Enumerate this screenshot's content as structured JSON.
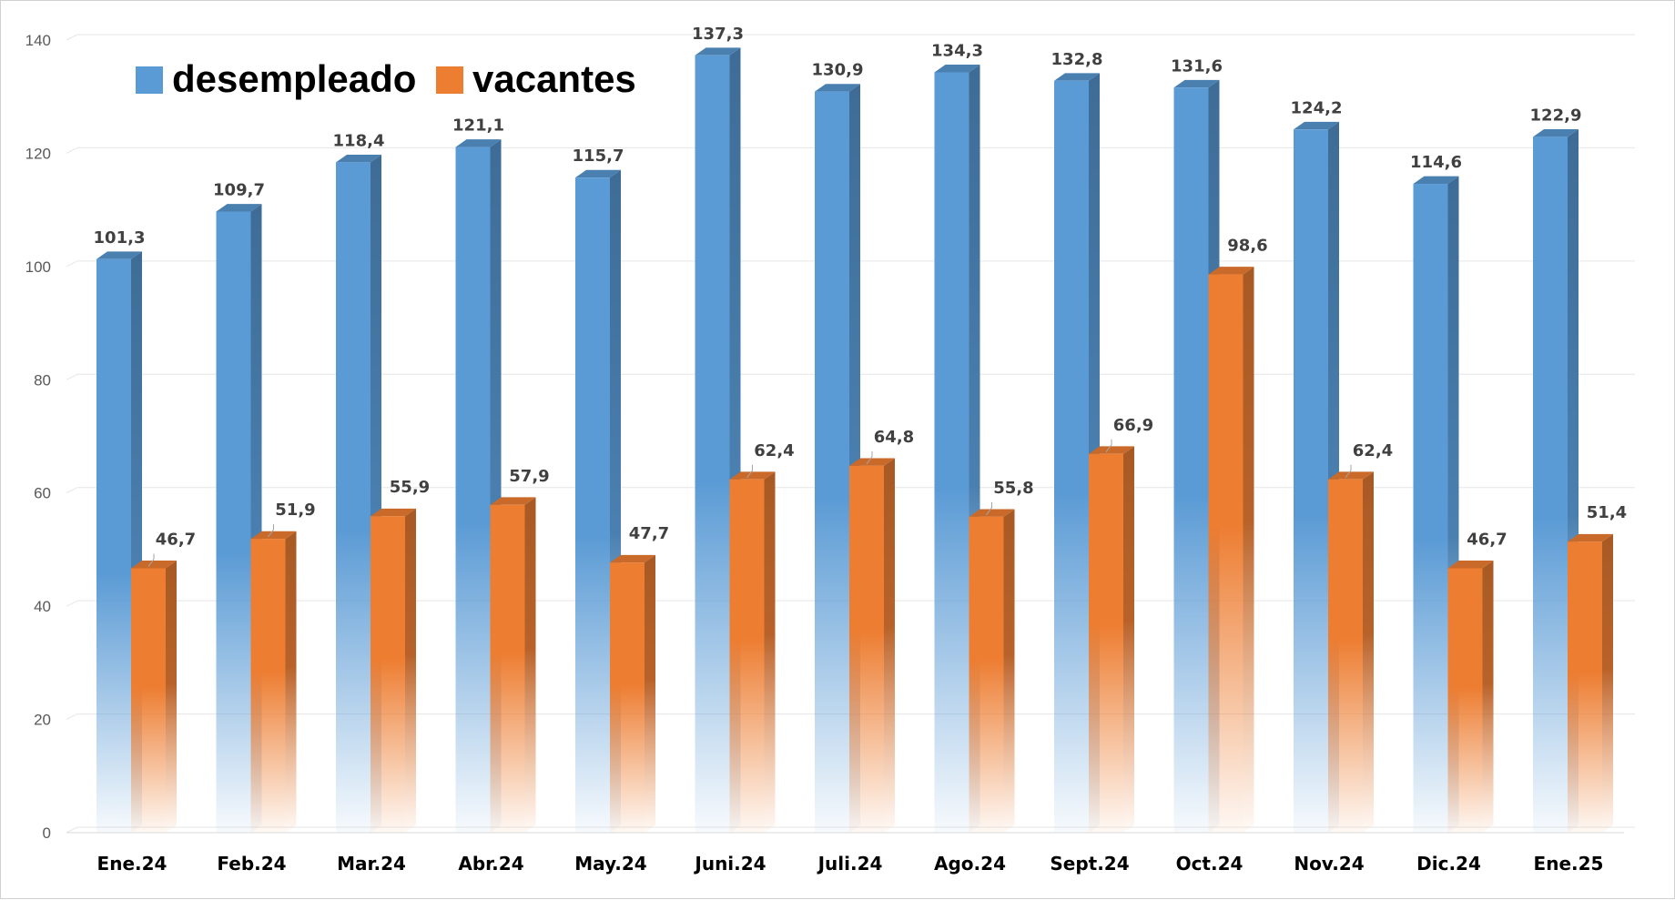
{
  "colors": {
    "desempleado": "#5B9BD5",
    "desempleado_side": "#3E6C96",
    "desempleado_top": "#4A80B0",
    "vacantes": "#ED7D31",
    "vacantes_side": "#A85A24",
    "vacantes_top": "#C96A2A",
    "grid": "#E6E6E6"
  },
  "chart_data": {
    "type": "bar",
    "title": "",
    "xlabel": "",
    "ylabel": "",
    "ylim": [
      0,
      140
    ],
    "yticks": [
      0,
      20,
      40,
      60,
      80,
      100,
      120,
      140
    ],
    "grid": true,
    "legend_position": "top-left",
    "categories": [
      "Ene.24",
      "Feb.24",
      "Mar.24",
      "Abr.24",
      "May.24",
      "Juni.24",
      "Juli.24",
      "Ago.24",
      "Sept.24",
      "Oct.24",
      "Nov.24",
      "Dic.24",
      "Ene.25"
    ],
    "series": [
      {
        "name": "desempleado",
        "values": [
          101.3,
          109.7,
          118.4,
          121.1,
          115.7,
          137.3,
          130.9,
          134.3,
          132.8,
          131.6,
          124.2,
          114.6,
          122.9
        ],
        "labels": [
          "101,3",
          "109,7",
          "118,4",
          "121,1",
          "115,7",
          "137,3",
          "130,9",
          "134,3",
          "132,8",
          "131,6",
          "124,2",
          "114,6",
          "122,9"
        ]
      },
      {
        "name": "vacantes",
        "values": [
          46.7,
          51.9,
          55.9,
          57.9,
          47.7,
          62.4,
          64.8,
          55.8,
          66.9,
          98.6,
          62.4,
          46.7,
          51.4
        ],
        "labels": [
          "46,7",
          "51,9",
          "55,9",
          "57,9",
          "47,7",
          "62,4",
          "64,8",
          "55,8",
          "66,9",
          "98,6",
          "62,4",
          "46,7",
          "51,4"
        ]
      }
    ]
  }
}
